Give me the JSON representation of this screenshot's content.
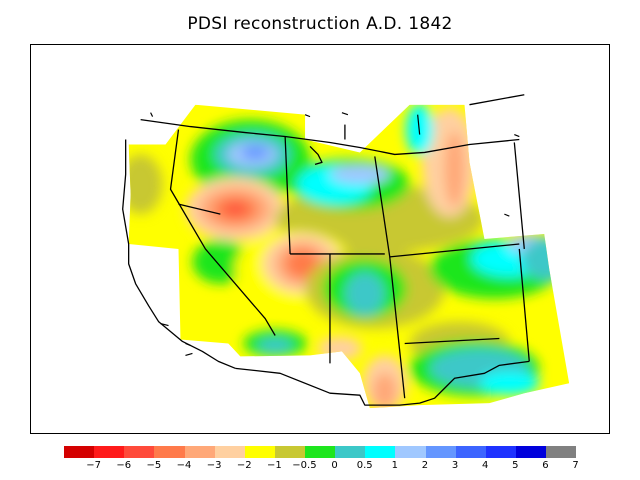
{
  "title": "PDSI reconstruction A.D. 1842",
  "colorbar": {
    "colors": [
      "#d40000",
      "#ff1a1a",
      "#ff4a3a",
      "#ff7a4a",
      "#ffa878",
      "#ffd0a0",
      "#ffff00",
      "#c8c832",
      "#1ee61e",
      "#3cc8c8",
      "#00ffff",
      "#a0c8ff",
      "#6496ff",
      "#3c64ff",
      "#1e32ff",
      "#0000dc",
      "#808080"
    ],
    "labels": [
      "−7",
      "−6",
      "−5",
      "−4",
      "−3",
      "−2",
      "−1",
      "−0.5",
      "0",
      "0.5",
      "1",
      "2",
      "3",
      "4",
      "5",
      "6",
      "7"
    ]
  }
}
